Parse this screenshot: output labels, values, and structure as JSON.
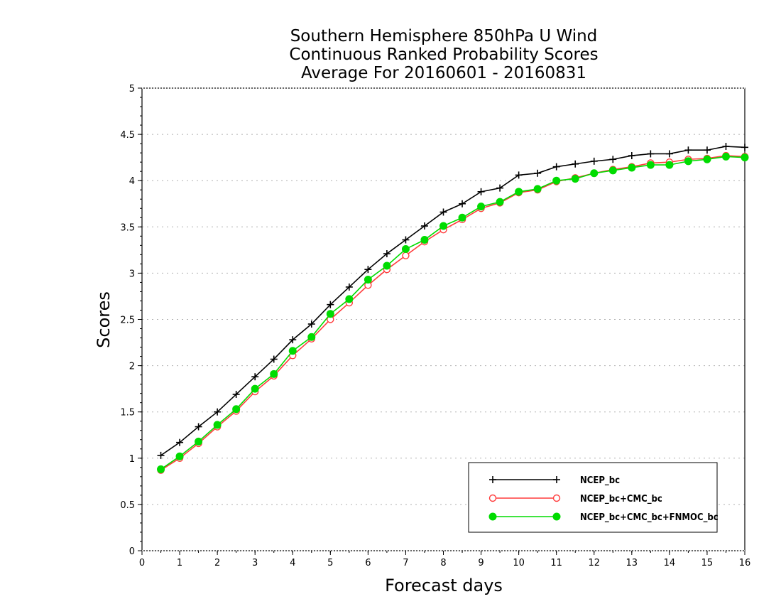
{
  "colors": {
    "ncep": "#000000",
    "ncep_cmc": "#ff3c3c",
    "ncep_cmc_fnmoc": "#00dc00"
  },
  "chart_data": {
    "type": "line",
    "title_lines": [
      "Southern Hemisphere 850hPa U Wind",
      "Continuous Ranked Probability Scores",
      "Average For 20160601 - 20160831"
    ],
    "xlabel": "Forecast days",
    "ylabel": "Scores",
    "xlim": [
      0,
      16
    ],
    "ylim": [
      0,
      5
    ],
    "xticks": [
      "0",
      "1",
      "2",
      "3",
      "4",
      "5",
      "6",
      "7",
      "8",
      "9",
      "10",
      "11",
      "12",
      "13",
      "14",
      "15",
      "16"
    ],
    "yticks": [
      "0",
      "0.5",
      "1",
      "1.5",
      "2",
      "2.5",
      "3",
      "3.5",
      "4",
      "4.5",
      "5"
    ],
    "grid": "horizontal-dotted",
    "legend_position": "bottom-right",
    "x": [
      0.5,
      1,
      1.5,
      2,
      2.5,
      3,
      3.5,
      4,
      4.5,
      5,
      5.5,
      6,
      6.5,
      7,
      7.5,
      8,
      8.5,
      9,
      9.5,
      10,
      10.5,
      11,
      11.5,
      12,
      12.5,
      13,
      13.5,
      14,
      14.5,
      15,
      15.5,
      16
    ],
    "series": [
      {
        "name": "NCEP_bc",
        "marker": "plus",
        "values": [
          1.03,
          1.17,
          1.34,
          1.5,
          1.69,
          1.88,
          2.07,
          2.28,
          2.45,
          2.66,
          2.85,
          3.04,
          3.21,
          3.36,
          3.51,
          3.66,
          3.75,
          3.88,
          3.92,
          4.06,
          4.08,
          4.15,
          4.18,
          4.21,
          4.23,
          4.27,
          4.29,
          4.29,
          4.33,
          4.33,
          4.37,
          4.36
        ]
      },
      {
        "name": "NCEP_bc+CMC_bc",
        "marker": "open-circle",
        "values": [
          0.87,
          1.0,
          1.16,
          1.34,
          1.51,
          1.72,
          1.89,
          2.11,
          2.29,
          2.5,
          2.68,
          2.87,
          3.04,
          3.19,
          3.34,
          3.47,
          3.58,
          3.7,
          3.76,
          3.87,
          3.9,
          3.99,
          4.03,
          4.08,
          4.12,
          4.15,
          4.19,
          4.2,
          4.23,
          4.24,
          4.27,
          4.26
        ]
      },
      {
        "name": "NCEP_bc+CMC_bc+FNMOC_bc",
        "marker": "filled-circle",
        "values": [
          0.88,
          1.02,
          1.18,
          1.36,
          1.53,
          1.75,
          1.91,
          2.16,
          2.31,
          2.56,
          2.72,
          2.93,
          3.08,
          3.26,
          3.36,
          3.51,
          3.6,
          3.72,
          3.77,
          3.88,
          3.91,
          4.0,
          4.02,
          4.08,
          4.11,
          4.14,
          4.17,
          4.17,
          4.21,
          4.23,
          4.26,
          4.25
        ]
      }
    ]
  }
}
